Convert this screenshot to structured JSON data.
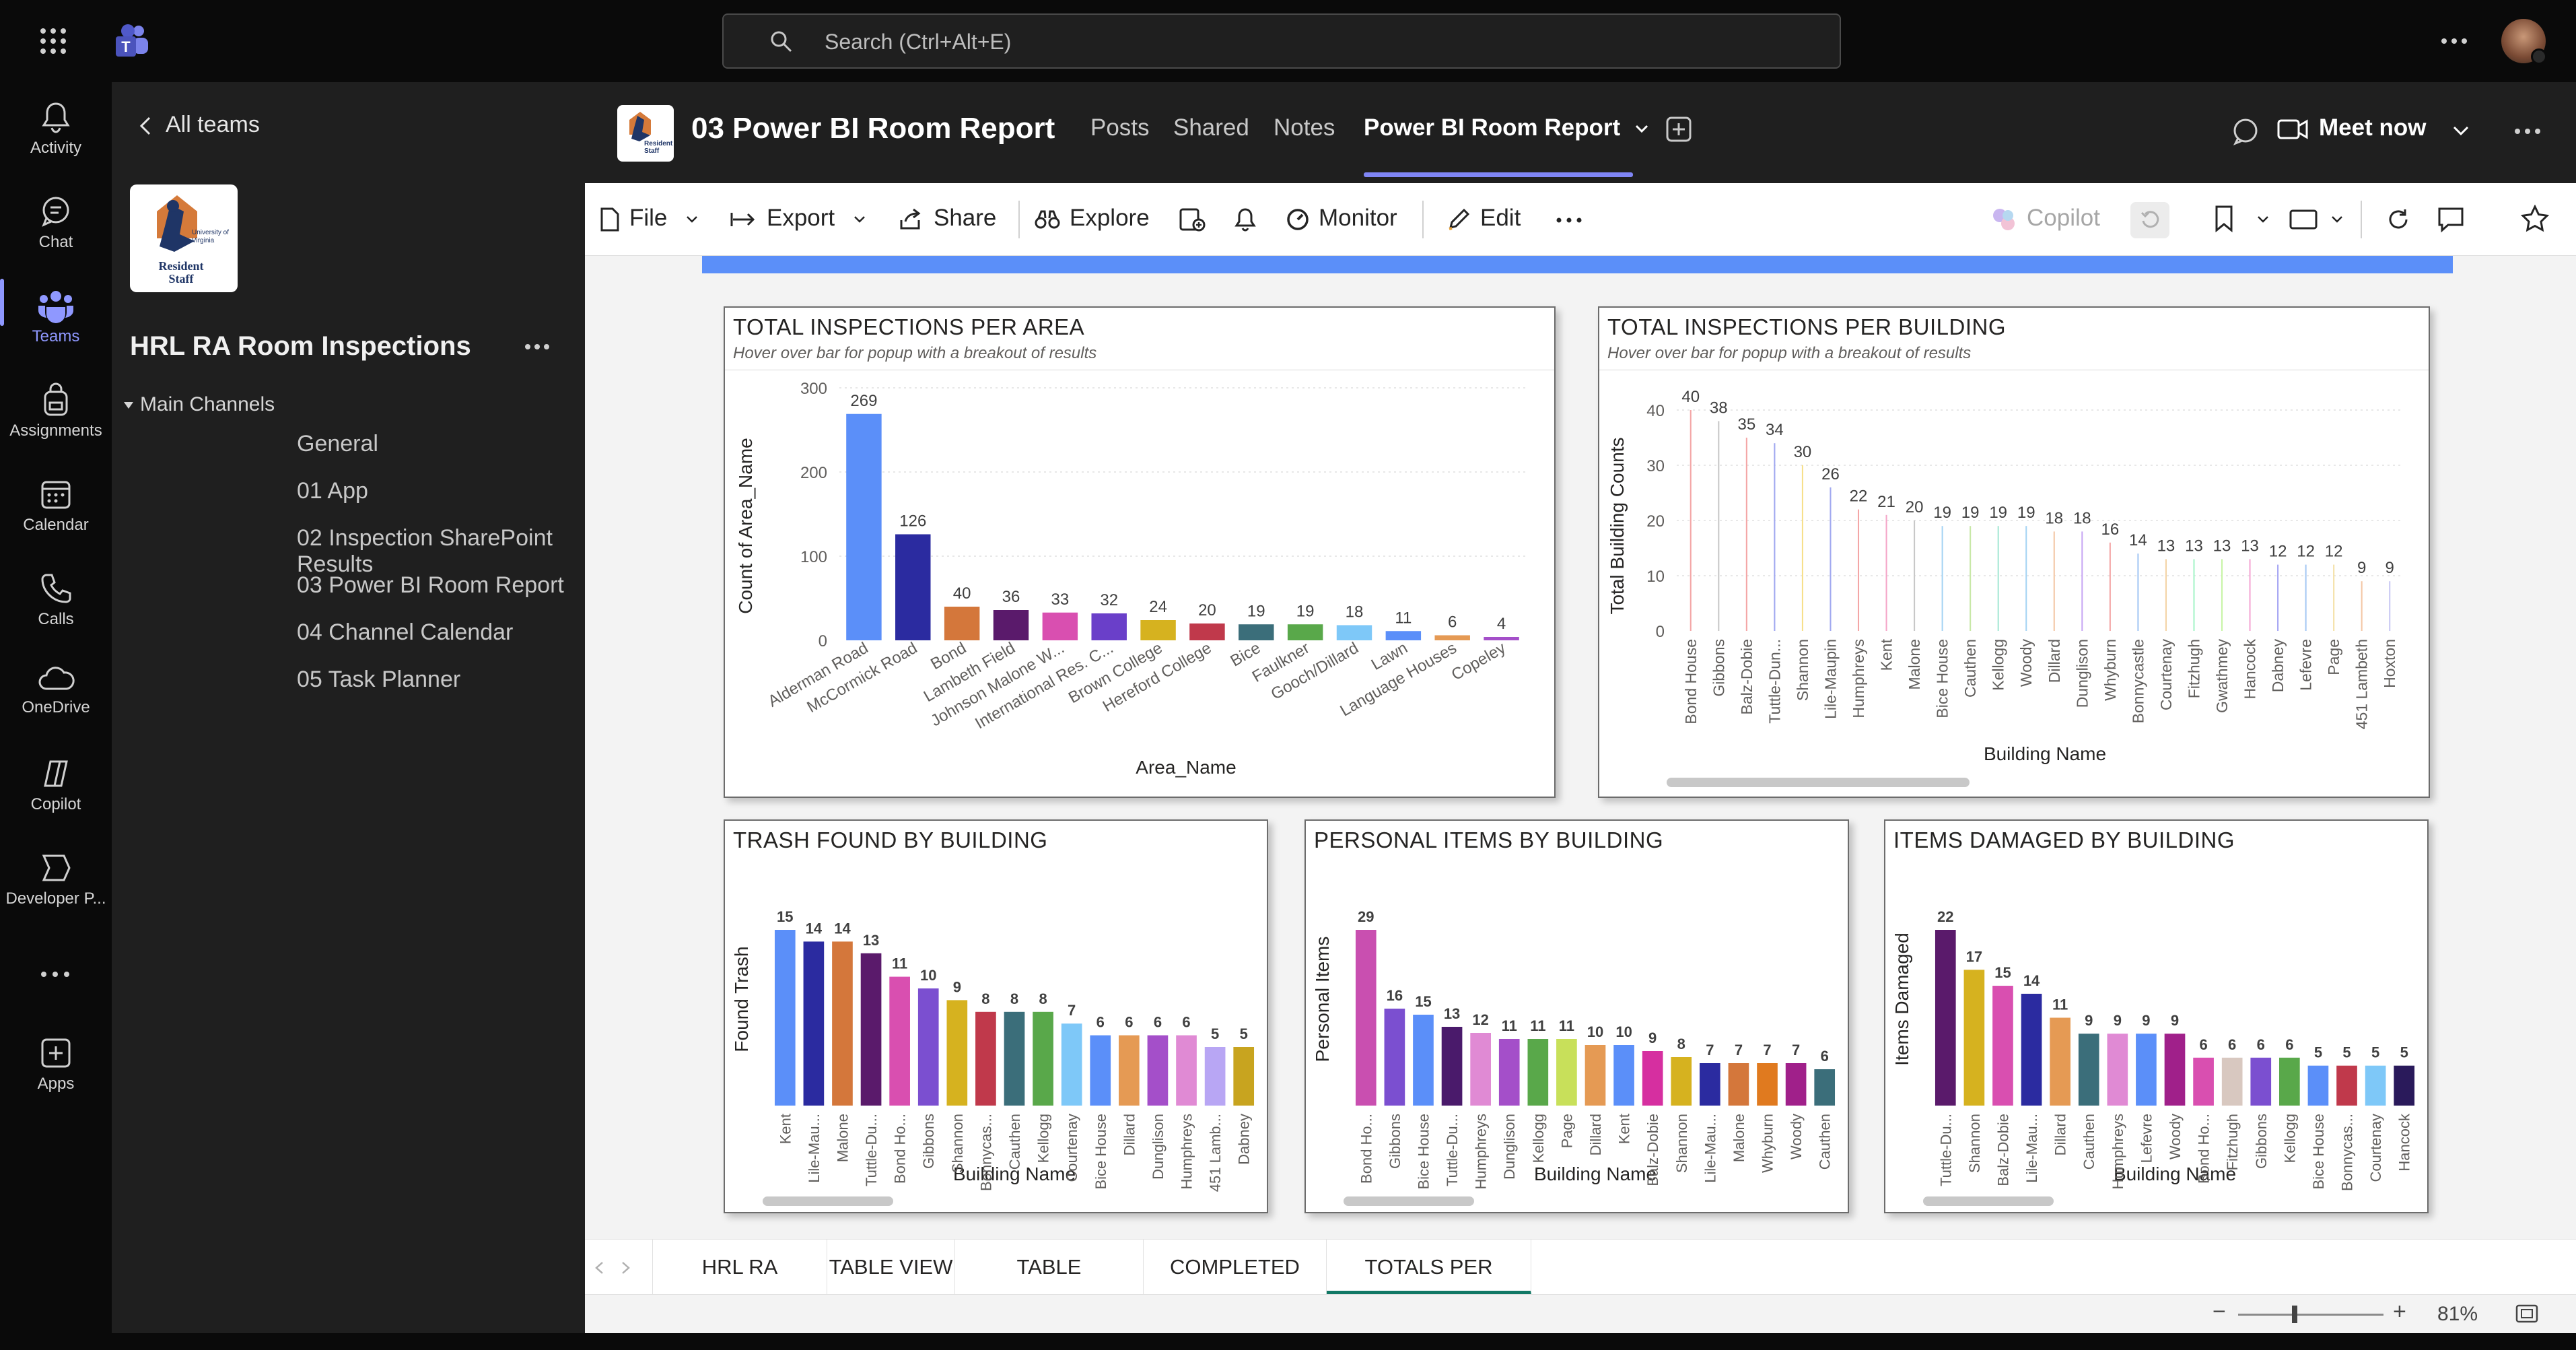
{
  "topbar": {
    "search_placeholder": "Search (Ctrl+Alt+E)"
  },
  "rail": {
    "items": [
      {
        "label": "Activity",
        "icon": "bell-icon"
      },
      {
        "label": "Chat",
        "icon": "chat-icon"
      },
      {
        "label": "Teams",
        "icon": "teams-icon"
      },
      {
        "label": "Assignments",
        "icon": "backpack-icon"
      },
      {
        "label": "Calendar",
        "icon": "calendar-icon"
      },
      {
        "label": "Calls",
        "icon": "phone-icon"
      },
      {
        "label": "OneDrive",
        "icon": "cloud-icon"
      },
      {
        "label": "Copilot",
        "icon": "copilot-icon"
      },
      {
        "label": "Developer P...",
        "icon": "developer-icon"
      },
      {
        "label": "Apps",
        "icon": "apps-plus-icon"
      }
    ]
  },
  "leftpanel": {
    "back_label": "All teams",
    "logo_line1": "University of Virginia",
    "logo_line2": "Resident Staff",
    "team_name": "HRL RA Room Inspections",
    "section_label": "Main Channels",
    "channels": [
      "General",
      "01 App",
      "02 Inspection SharePoint Results",
      "03 Power BI Room Report",
      "04 Channel Calendar",
      "05 Task Planner"
    ]
  },
  "header": {
    "channel_title": "03 Power BI Room Report",
    "logo_line": "Resident Staff",
    "tabs": [
      "Posts",
      "Shared",
      "Notes",
      "Power BI Room Report"
    ],
    "meet_label": "Meet now"
  },
  "toolbar": {
    "file": "File",
    "export": "Export",
    "share": "Share",
    "explore": "Explore",
    "monitor": "Monitor",
    "edit": "Edit",
    "copilot": "Copilot"
  },
  "colors": {
    "accent": "#7f85f5",
    "active_page_tab": "#117865",
    "banner": "#5b8ff9"
  },
  "chart_data": [
    {
      "id": "area",
      "type": "bar",
      "title": "TOTAL INSPECTIONS PER AREA",
      "subtitle": "Hover over bar for popup with a breakout of results",
      "xlabel": "Area_Name",
      "ylabel": "Count of Area_Name",
      "ylim": [
        0,
        300
      ],
      "yticks": [
        0,
        100,
        200,
        300
      ],
      "categories": [
        "Alderman Road",
        "McCormick Road",
        "Bond",
        "Lambeth Field",
        "Johnson Malone W...",
        "International Res. C...",
        "Brown College",
        "Hereford College",
        "Bice",
        "Faulkner",
        "Gooch/Dillard",
        "Lawn",
        "Language Houses",
        "Copeley"
      ],
      "values": [
        269,
        126,
        40,
        36,
        33,
        32,
        24,
        20,
        19,
        19,
        18,
        11,
        6,
        4
      ],
      "colors": [
        "#5b8ff9",
        "#2b2ba0",
        "#d4773b",
        "#5a1a6b",
        "#d94fb0",
        "#6a3fc9",
        "#d6b21f",
        "#c0394b",
        "#3b6e7a",
        "#59a84a",
        "#7ec8f8",
        "#5b8ff9",
        "#e59a54",
        "#a44fc9"
      ]
    },
    {
      "id": "building",
      "type": "bar",
      "title": "TOTAL INSPECTIONS PER BUILDING",
      "subtitle": "Hover over bar for popup with a breakout of results",
      "xlabel": "Building Name",
      "ylabel": "Total Building Counts",
      "ylim": [
        0,
        40
      ],
      "yticks": [
        0,
        10,
        20,
        30,
        40
      ],
      "categories": [
        "Bond House",
        "Gibbons",
        "Balz-Dobie",
        "Tuttle-Dun...",
        "Shannon",
        "Lile-Maupin",
        "Humphreys",
        "Kent",
        "Malone",
        "Bice House",
        "Cauthen",
        "Kellogg",
        "Woody",
        "Dillard",
        "Dunglison",
        "Whyburn",
        "Bonnycastle",
        "Courtenay",
        "Fitzhugh",
        "Gwathmey",
        "Hancock",
        "Dabney",
        "Lefevre",
        "Page",
        "451 Lambeth",
        "Hoxton"
      ],
      "values": [
        40,
        38,
        35,
        34,
        30,
        26,
        22,
        21,
        20,
        19,
        19,
        19,
        19,
        18,
        18,
        16,
        14,
        13,
        13,
        13,
        13,
        12,
        12,
        12,
        9,
        9
      ],
      "colors": [
        "#f4a6a6",
        "#c8c8c8",
        "#f4a6a6",
        "#a0a8f0",
        "#f7e08a",
        "#a0a8f0",
        "#f4a6a6",
        "#f4a6c8",
        "#c8c8c8",
        "#a6d4f4",
        "#c8e8a6",
        "#a6e8d4",
        "#a6d4f4",
        "#f4c8a6",
        "#c8a6f4",
        "#f4a6a6",
        "#a6c8f4",
        "#f4d4a6",
        "#a6f4c8",
        "#c8f4a6",
        "#f4a6d4",
        "#a6a6f4",
        "#a6c8f4",
        "#f4e0a6",
        "#f4c8a6",
        "#c8c8f4"
      ]
    },
    {
      "id": "trash",
      "type": "bar",
      "title": "TRASH FOUND BY BUILDING",
      "xlabel": "Building Name",
      "ylabel": "Found Trash",
      "ylim": [
        0,
        15
      ],
      "categories": [
        "Kent",
        "Lile-Mau...",
        "Malone",
        "Tuttle-Du...",
        "Bond Ho...",
        "Gibbons",
        "Shannon",
        "Bonnycas...",
        "Cauthen",
        "Kellogg",
        "Courtenay",
        "Bice House",
        "Dillard",
        "Dunglison",
        "Humphreys",
        "451 Lamb...",
        "Dabney"
      ],
      "values": [
        15,
        14,
        14,
        13,
        11,
        10,
        9,
        8,
        8,
        8,
        7,
        6,
        6,
        6,
        6,
        5,
        5
      ],
      "colors": [
        "#5b8ff9",
        "#2b2ba0",
        "#d4773b",
        "#5a1a6b",
        "#d94fb0",
        "#7b4fd0",
        "#d6b21f",
        "#c0394b",
        "#3b6e7a",
        "#59a84a",
        "#7ec8f8",
        "#5b8ff9",
        "#e59a54",
        "#a44fc9",
        "#e08ad4",
        "#b8a6f4",
        "#c8a41f"
      ]
    },
    {
      "id": "personal",
      "type": "bar",
      "title": "PERSONAL ITEMS BY BUILDING",
      "xlabel": "Building Name",
      "ylabel": "Personal Items",
      "ylim": [
        0,
        29
      ],
      "categories": [
        "Bond Ho...",
        "Gibbons",
        "Bice House",
        "Tuttle-Du...",
        "Humphreys",
        "Dunglison",
        "Kellogg",
        "Page",
        "Dillard",
        "Kent",
        "Balz-Dobie",
        "Shannon",
        "Lile-Mau...",
        "Malone",
        "Whyburn",
        "Woody",
        "Cauthen"
      ],
      "values": [
        29,
        16,
        15,
        13,
        12,
        11,
        11,
        11,
        10,
        10,
        9,
        8,
        7,
        7,
        7,
        7,
        6
      ],
      "colors": [
        "#c94fb0",
        "#7b4fd0",
        "#5b8ff9",
        "#4a1a6b",
        "#e08ad4",
        "#a44fc9",
        "#59a84a",
        "#c8e05a",
        "#e59a54",
        "#5b8ff9",
        "#d62fa0",
        "#d6b21f",
        "#2b2ba0",
        "#d4773b",
        "#e07a1f",
        "#a0208a",
        "#3b6e7a"
      ]
    },
    {
      "id": "damaged",
      "type": "bar",
      "title": "ITEMS DAMAGED BY BUILDING",
      "xlabel": "Building Name",
      "ylabel": "Items Damaged",
      "ylim": [
        0,
        22
      ],
      "categories": [
        "Tuttle-Du...",
        "Shannon",
        "Balz-Dobie",
        "Lile-Mau...",
        "Dillard",
        "Cauthen",
        "Humphreys",
        "Lefevre",
        "Woody",
        "Bond Ho...",
        "Fitzhugh",
        "Gibbons",
        "Kellogg",
        "Bice House",
        "Bonnycas...",
        "Courtenay",
        "Hancock"
      ],
      "values": [
        22,
        17,
        15,
        14,
        11,
        9,
        9,
        9,
        9,
        6,
        6,
        6,
        6,
        5,
        5,
        5,
        5
      ],
      "colors": [
        "#5a1a6b",
        "#d6b21f",
        "#d94fb0",
        "#2b2ba0",
        "#e59a54",
        "#3b6e7a",
        "#e08ad4",
        "#5b8ff9",
        "#a0208a",
        "#d94fb0",
        "#d8c8c0",
        "#7b4fd0",
        "#59a84a",
        "#5b8ff9",
        "#c0394b",
        "#7ec8f8",
        "#2a1a5b"
      ]
    }
  ],
  "pagetabs": [
    "HRL RA INSPECTIONS",
    "TABLE VIEW",
    "TABLE SATISFACTORY",
    "COMPLETED ROOMS",
    "TOTALS PER BUILDING"
  ],
  "status": {
    "zoom": "81%"
  }
}
